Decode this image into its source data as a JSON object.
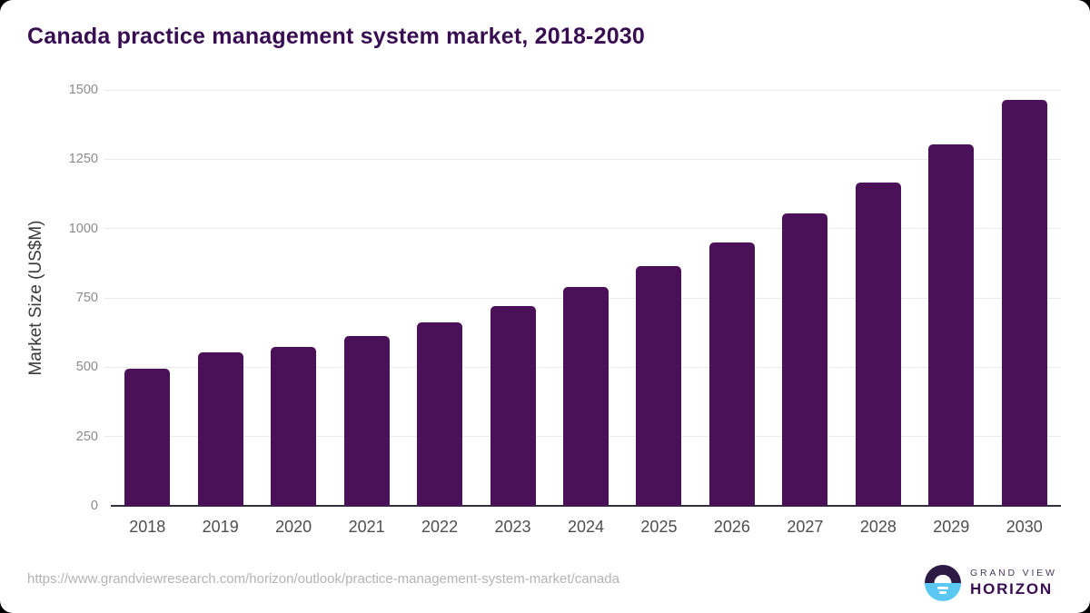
{
  "page": {
    "title": "Canada practice management system market, 2018-2030"
  },
  "chart_data": {
    "type": "bar",
    "title": "Canada practice management system market, 2018-2030",
    "categories": [
      "2018",
      "2019",
      "2020",
      "2021",
      "2022",
      "2023",
      "2024",
      "2025",
      "2026",
      "2027",
      "2028",
      "2029",
      "2030"
    ],
    "values": [
      495,
      553,
      572,
      611,
      660,
      720,
      789,
      864,
      951,
      1056,
      1167,
      1303,
      1464
    ],
    "xlabel": "",
    "ylabel": "Market Size (US$M)",
    "yticks": [
      0,
      250,
      500,
      750,
      1000,
      1250,
      1500
    ],
    "ylim": [
      0,
      1500
    ],
    "grid": true,
    "legend_position": "none",
    "bar_color": "#4a1158"
  },
  "footer": {
    "source_url": "https://www.grandviewresearch.com/horizon/outlook/practice-management-system-market/canada",
    "logo": {
      "brand_line1": "GRAND VIEW",
      "brand_line2": "HORIZON"
    }
  },
  "colors": {
    "title": "#380d52",
    "bar": "#4a1158",
    "axis_line": "#32323c",
    "gridline": "#e9e9ee",
    "tick_label": "#8b8b8b",
    "x_label": "#4f4f4f",
    "y_axis_label": "#3a3a3a",
    "url_text": "#b3b3b3",
    "logo_dark": "#2c1a45",
    "logo_blue": "#5bc8f3",
    "card_bg": "#ffffff",
    "page_bg": "#000000"
  }
}
